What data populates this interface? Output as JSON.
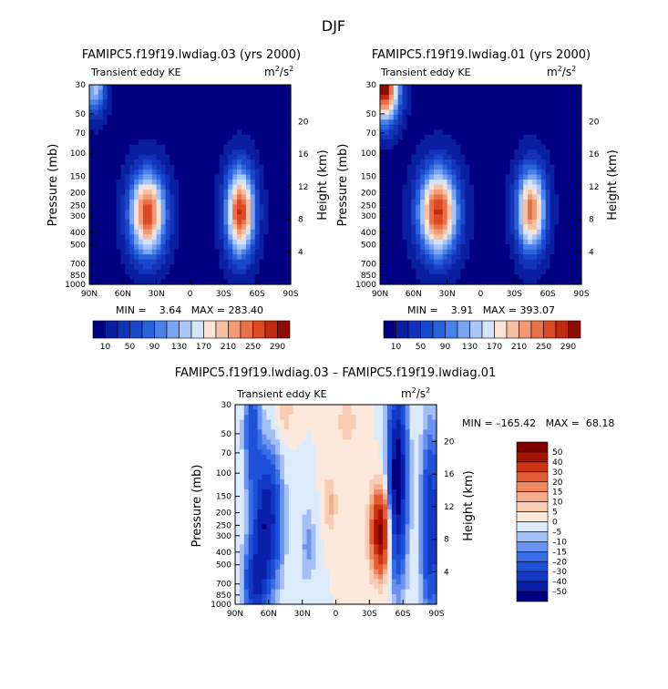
{
  "page": {
    "season": "DJF"
  },
  "chart_data": [
    {
      "type": "heatmap",
      "title": "FAMIPC5.f19f19.lwdiag.03 (yrs 2000)",
      "subtitle_left": "Transient eddy KE",
      "units_base": "m",
      "units_exp1": "2",
      "units_mid": "/s",
      "units_exp2": "2",
      "xlabel": "",
      "ylabel": "Pressure (mb)",
      "y2label": "Height (km)",
      "x_ticks": [
        "90N",
        "60N",
        "30N",
        "0",
        "30S",
        "60S",
        "90S"
      ],
      "x_tick_values": [
        90,
        60,
        30,
        0,
        -30,
        -60,
        -90
      ],
      "y_ticks": [
        "30",
        "50",
        "70",
        "100",
        "150",
        "200",
        "250",
        "300",
        "400",
        "500",
        "700",
        "850",
        "1000"
      ],
      "y_tick_values": [
        30,
        50,
        70,
        100,
        150,
        200,
        250,
        300,
        400,
        500,
        700,
        850,
        1000
      ],
      "y2_ticks": [
        "20",
        "16",
        "12",
        "8",
        "4"
      ],
      "y2_tick_values": [
        20,
        16,
        12,
        8,
        4
      ],
      "stats": "MIN =    3.64   MAX = 283.40",
      "min": 3.64,
      "max": 283.4,
      "levels": [
        10,
        30,
        50,
        70,
        90,
        110,
        130,
        150,
        170,
        190,
        210,
        230,
        250,
        270,
        290
      ],
      "level_labels": [
        "10",
        "50",
        "90",
        "130",
        "170",
        "210",
        "250",
        "290"
      ],
      "colors": [
        "#000080",
        "#0a1ea0",
        "#1232b8",
        "#1a48cc",
        "#2a62dc",
        "#4a80e8",
        "#7aa4f0",
        "#aac6f6",
        "#d4e4fa",
        "#fbe2d2",
        "#f6c0a4",
        "#f29a76",
        "#ea7048",
        "#dc4a24",
        "#c42a10",
        "#8c0c00"
      ],
      "blobs": [
        {
          "lat": 38,
          "p": 290,
          "amp": 265,
          "slat": 11,
          "slogp": 0.22
        },
        {
          "lat": -45,
          "p": 280,
          "amp": 270,
          "slat": 9,
          "slogp": 0.23
        },
        {
          "lat": 85,
          "p": 32,
          "amp": 140,
          "slat": 7,
          "slogp": 0.14
        }
      ]
    },
    {
      "type": "heatmap",
      "title": "FAMIPC5.f19f19.lwdiag.01 (yrs 2000)",
      "subtitle_left": "Transient eddy KE",
      "units_base": "m",
      "units_exp1": "2",
      "units_mid": "/s",
      "units_exp2": "2",
      "xlabel": "",
      "ylabel": "Pressure (mb)",
      "y2label": "Height (km)",
      "x_ticks": [
        "90N",
        "60N",
        "30N",
        "0",
        "30S",
        "60S",
        "90S"
      ],
      "x_tick_values": [
        90,
        60,
        30,
        0,
        -30,
        -60,
        -90
      ],
      "y_ticks": [
        "30",
        "50",
        "70",
        "100",
        "150",
        "200",
        "250",
        "300",
        "400",
        "500",
        "700",
        "850",
        "1000"
      ],
      "y_tick_values": [
        30,
        50,
        70,
        100,
        150,
        200,
        250,
        300,
        400,
        500,
        700,
        850,
        1000
      ],
      "y2_ticks": [
        "20",
        "16",
        "12",
        "8",
        "4"
      ],
      "y2_tick_values": [
        20,
        16,
        12,
        8,
        4
      ],
      "stats": "MIN =    3.91   MAX = 393.07",
      "min": 3.91,
      "max": 393.07,
      "levels": [
        10,
        30,
        50,
        70,
        90,
        110,
        130,
        150,
        170,
        190,
        210,
        230,
        250,
        270,
        290
      ],
      "level_labels": [
        "10",
        "50",
        "90",
        "130",
        "170",
        "210",
        "250",
        "290"
      ],
      "colors": [
        "#000080",
        "#0a1ea0",
        "#1232b8",
        "#1a48cc",
        "#2a62dc",
        "#4a80e8",
        "#7aa4f0",
        "#aac6f6",
        "#d4e4fa",
        "#fbe2d2",
        "#f6c0a4",
        "#f29a76",
        "#ea7048",
        "#dc4a24",
        "#c42a10",
        "#8c0c00"
      ],
      "blobs": [
        {
          "lat": 38,
          "p": 280,
          "amp": 275,
          "slat": 12,
          "slogp": 0.23
        },
        {
          "lat": -45,
          "p": 270,
          "amp": 240,
          "slat": 9,
          "slogp": 0.22
        },
        {
          "lat": 86,
          "p": 32,
          "amp": 300,
          "slat": 9,
          "slogp": 0.18
        }
      ]
    },
    {
      "type": "heatmap",
      "title": "FAMIPC5.f19f19.lwdiag.03 – FAMIPC5.f19f19.lwdiag.01",
      "subtitle_left": "Transient eddy KE",
      "units_base": "m",
      "units_exp1": "2",
      "units_mid": "/s",
      "units_exp2": "2",
      "xlabel": "",
      "ylabel": "Pressure (mb)",
      "y2label": "Height (km)",
      "x_ticks": [
        "90N",
        "60N",
        "30N",
        "0",
        "30S",
        "60S",
        "90S"
      ],
      "x_tick_values": [
        90,
        60,
        30,
        0,
        -30,
        -60,
        -90
      ],
      "y_ticks": [
        "30",
        "50",
        "70",
        "100",
        "150",
        "200",
        "250",
        "300",
        "400",
        "500",
        "700",
        "850",
        "1000"
      ],
      "y_tick_values": [
        30,
        50,
        70,
        100,
        150,
        200,
        250,
        300,
        400,
        500,
        700,
        850,
        1000
      ],
      "y2_ticks": [
        "20",
        "16",
        "12",
        "8",
        "4"
      ],
      "y2_tick_values": [
        20,
        16,
        12,
        8,
        4
      ],
      "stats": "MIN = –165.42   MAX =  68.18",
      "min": -165.42,
      "max": 68.18,
      "levels": [
        -50,
        -40,
        -30,
        -20,
        -15,
        -10,
        -5,
        0,
        5,
        10,
        15,
        20,
        30,
        40,
        50
      ],
      "level_labels": [
        "50",
        "40",
        "30",
        "20",
        "15",
        "10",
        "5",
        "0",
        "–5",
        "–10",
        "–15",
        "–20",
        "–30",
        "–40",
        "–50"
      ],
      "colors": [
        "#000080",
        "#0a20aa",
        "#1238c4",
        "#1e50d8",
        "#3a6ee6",
        "#6a92ee",
        "#a4bef6",
        "#dcebfc",
        "#fde8dc",
        "#f9cdb4",
        "#f5ad8e",
        "#f08862",
        "#e45c36",
        "#cc3414",
        "#a41404",
        "#800000"
      ],
      "blobs": [
        {
          "lat": 62,
          "p": 230,
          "amp": -50,
          "slat": 9,
          "slogp": 0.35
        },
        {
          "lat": 72,
          "p": 700,
          "amp": -35,
          "slat": 7,
          "slogp": 0.2
        },
        {
          "lat": 75,
          "p": 45,
          "amp": -25,
          "slat": 5,
          "slogp": 0.3
        },
        {
          "lat": -55,
          "p": 110,
          "amp": -60,
          "slat": 6,
          "slogp": 0.5
        },
        {
          "lat": -85,
          "p": 250,
          "amp": -40,
          "slat": 6,
          "slogp": 0.5
        },
        {
          "lat": -40,
          "p": 280,
          "amp": 55,
          "slat": 6,
          "slogp": 0.22
        },
        {
          "lat": 5,
          "p": 170,
          "amp": 12,
          "slat": 4,
          "slogp": 0.15
        },
        {
          "lat": -10,
          "p": 40,
          "amp": 7,
          "slat": 8,
          "slogp": 0.2
        },
        {
          "lat": 45,
          "p": 33,
          "amp": 9,
          "slat": 5,
          "slogp": 0.15
        },
        {
          "lat": 25,
          "p": 360,
          "amp": -12,
          "slat": 5,
          "slogp": 0.2
        }
      ]
    }
  ]
}
